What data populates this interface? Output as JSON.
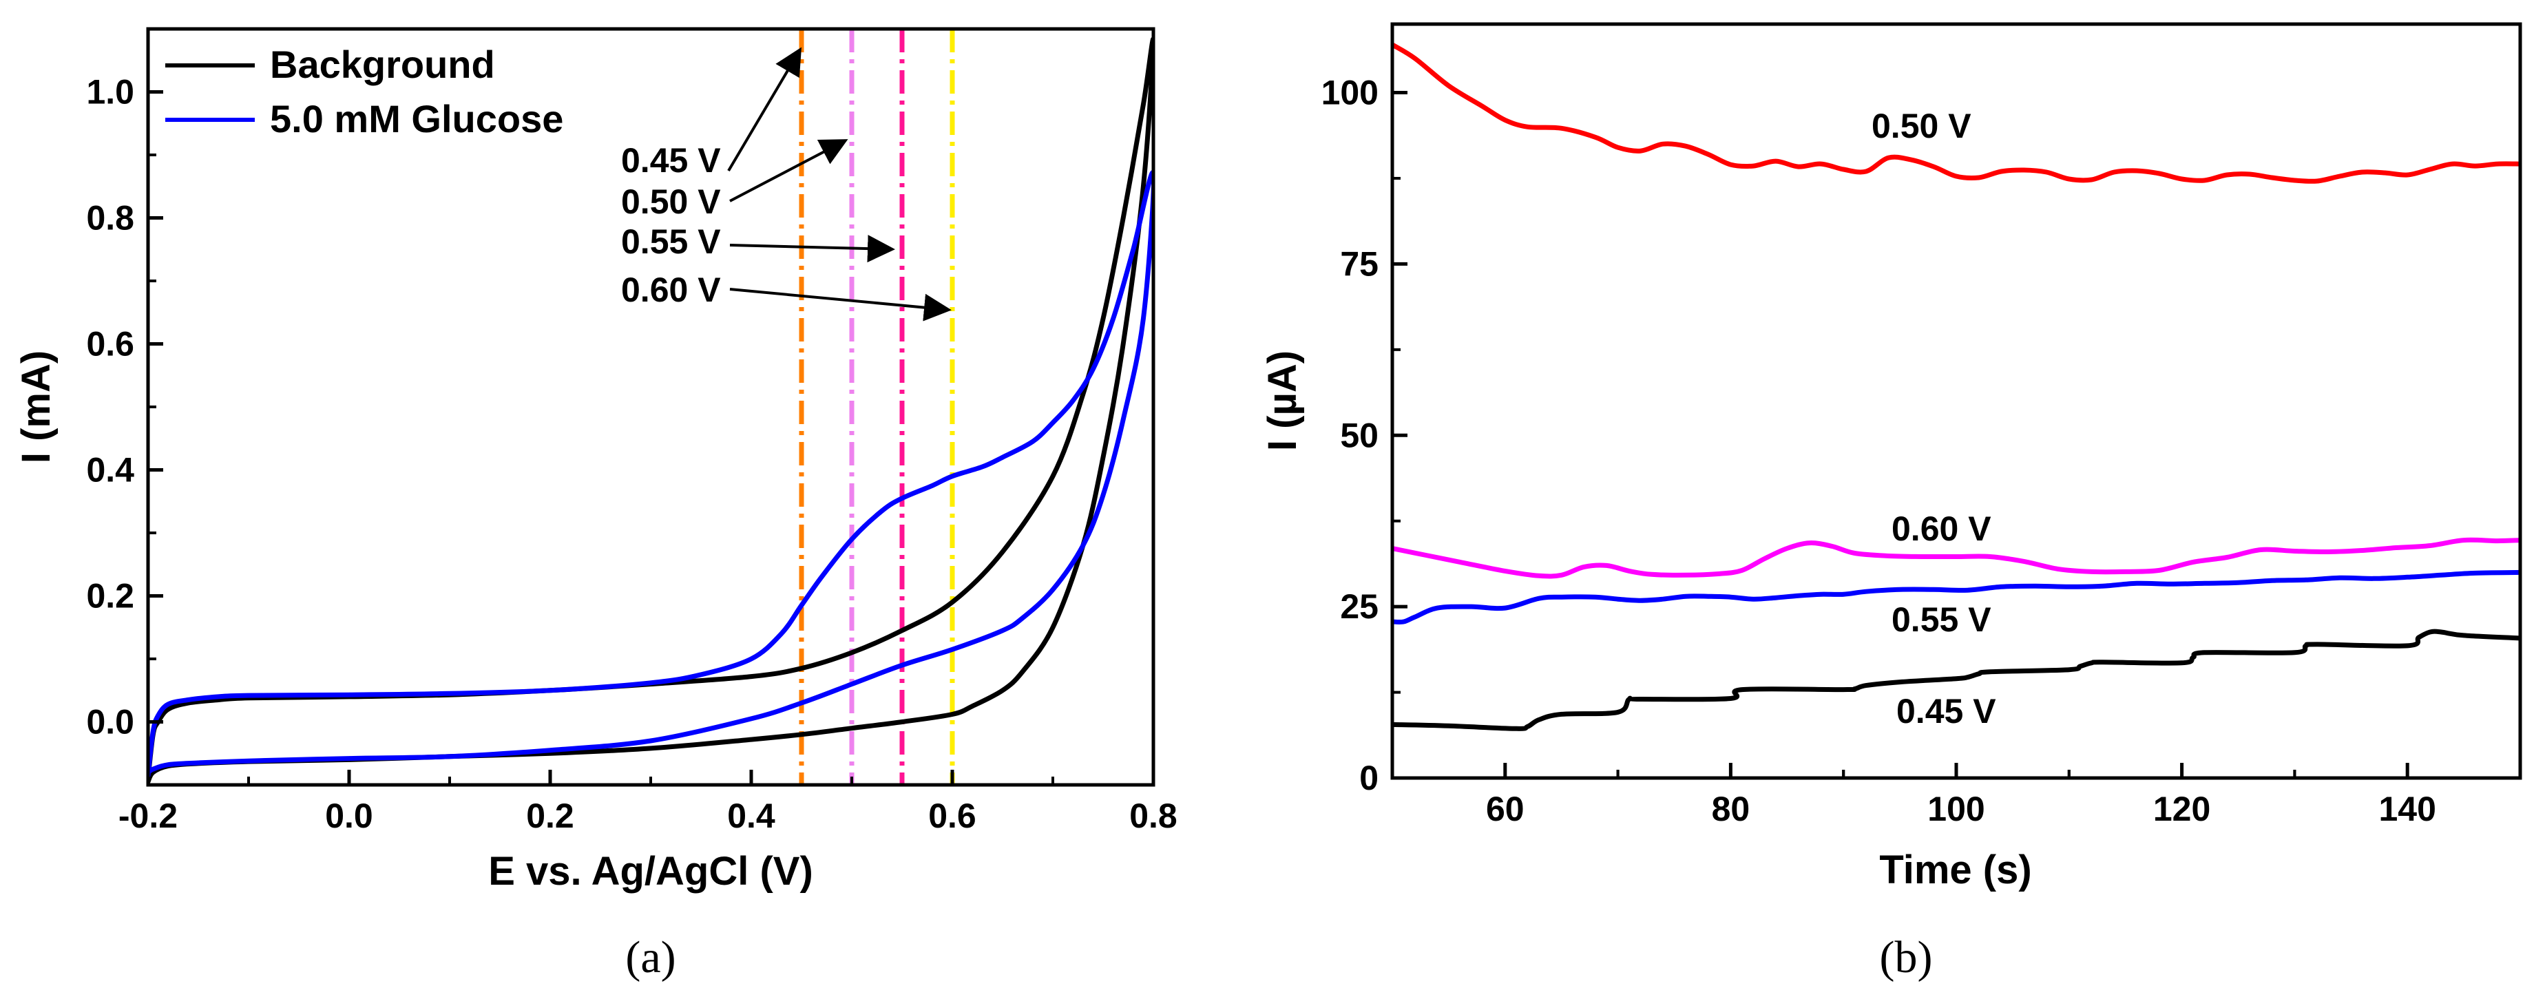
{
  "chart_data": [
    {
      "panel": "(a)",
      "type": "line",
      "title": "",
      "xlabel": "E vs. Ag/AgCl (V)",
      "ylabel": "I (mA)",
      "xlim": [
        -0.2,
        0.8
      ],
      "ylim": [
        -0.1,
        1.1
      ],
      "xticks": [
        -0.2,
        0.0,
        0.2,
        0.4,
        0.6,
        0.8
      ],
      "xtick_labels": [
        "-0.2",
        "0.0",
        "0.2",
        "0.4",
        "0.6",
        "0.8"
      ],
      "yticks": [
        0.0,
        0.2,
        0.4,
        0.6,
        0.8,
        1.0
      ],
      "ytick_labels": [
        "0.0",
        "0.2",
        "0.4",
        "0.6",
        "0.8",
        "1.0"
      ],
      "legend_position": "top-left",
      "series": [
        {
          "name": "Background",
          "color": "#000000",
          "x": [
            -0.2,
            -0.195,
            -0.19,
            -0.18,
            -0.16,
            -0.13,
            -0.1,
            0.0,
            0.1,
            0.2,
            0.3,
            0.4,
            0.45,
            0.5,
            0.55,
            0.6,
            0.65,
            0.7,
            0.73,
            0.75,
            0.77,
            0.79,
            0.8,
            0.79,
            0.77,
            0.75,
            0.73,
            0.7,
            0.67,
            0.65,
            0.62,
            0.6,
            0.55,
            0.5,
            0.45,
            0.4,
            0.3,
            0.2,
            0.1,
            0.0,
            -0.1,
            -0.15,
            -0.18,
            -0.195,
            -0.2
          ],
          "y": [
            -0.09,
            -0.02,
            0.0,
            0.02,
            0.03,
            0.035,
            0.038,
            0.04,
            0.043,
            0.05,
            0.06,
            0.072,
            0.085,
            0.11,
            0.145,
            0.19,
            0.27,
            0.39,
            0.52,
            0.64,
            0.8,
            0.98,
            1.08,
            0.85,
            0.6,
            0.42,
            0.28,
            0.15,
            0.08,
            0.05,
            0.025,
            0.012,
            0.0,
            -0.01,
            -0.02,
            -0.028,
            -0.042,
            -0.05,
            -0.055,
            -0.06,
            -0.063,
            -0.066,
            -0.07,
            -0.08,
            -0.095
          ]
        },
        {
          "name": "5.0 mM Glucose",
          "color": "#0000ff",
          "x": [
            -0.2,
            -0.195,
            -0.19,
            -0.18,
            -0.16,
            -0.13,
            -0.1,
            0.0,
            0.1,
            0.2,
            0.3,
            0.35,
            0.4,
            0.43,
            0.45,
            0.47,
            0.5,
            0.53,
            0.55,
            0.58,
            0.6,
            0.63,
            0.65,
            0.68,
            0.7,
            0.72,
            0.74,
            0.76,
            0.78,
            0.8,
            0.79,
            0.77,
            0.75,
            0.73,
            0.7,
            0.67,
            0.65,
            0.6,
            0.55,
            0.5,
            0.45,
            0.4,
            0.3,
            0.2,
            0.1,
            0.0,
            -0.1,
            -0.15,
            -0.18,
            -0.195,
            -0.2
          ],
          "y": [
            -0.085,
            -0.015,
            0.01,
            0.028,
            0.035,
            0.04,
            0.042,
            0.043,
            0.045,
            0.05,
            0.062,
            0.075,
            0.1,
            0.14,
            0.185,
            0.23,
            0.29,
            0.335,
            0.355,
            0.375,
            0.39,
            0.405,
            0.42,
            0.445,
            0.475,
            0.51,
            0.56,
            0.64,
            0.75,
            0.87,
            0.64,
            0.48,
            0.36,
            0.28,
            0.21,
            0.165,
            0.145,
            0.115,
            0.09,
            0.06,
            0.03,
            0.005,
            -0.03,
            -0.045,
            -0.055,
            -0.058,
            -0.062,
            -0.065,
            -0.068,
            -0.075,
            -0.08
          ]
        }
      ],
      "reference_lines": [
        {
          "x": 0.45,
          "label": "0.45 V",
          "color": "#ff7f00"
        },
        {
          "x": 0.5,
          "label": "0.50 V",
          "color": "#ee82ee"
        },
        {
          "x": 0.55,
          "label": "0.55 V",
          "color": "#ff1493"
        },
        {
          "x": 0.6,
          "label": "0.60 V",
          "color": "#ffee00"
        }
      ],
      "caption": "(a)"
    },
    {
      "panel": "(b)",
      "type": "line",
      "title": "",
      "xlabel": "Time (s)",
      "ylabel": "I (µA)",
      "xlim": [
        50,
        150
      ],
      "ylim": [
        0,
        110
      ],
      "xticks": [
        60,
        80,
        100,
        120,
        140
      ],
      "xtick_labels": [
        "60",
        "80",
        "100",
        "120",
        "140"
      ],
      "yticks": [
        0,
        25,
        50,
        75,
        100
      ],
      "ytick_labels": [
        "0",
        "25",
        "50",
        "75",
        "100"
      ],
      "series": [
        {
          "name": "0.50 V",
          "color": "#ff0000",
          "x": [
            50,
            52,
            55,
            58,
            60,
            62,
            65,
            68,
            70,
            72,
            74,
            76,
            78,
            80,
            82,
            84,
            86,
            88,
            90,
            92,
            94,
            96,
            98,
            100,
            102,
            104,
            106,
            108,
            110,
            112,
            114,
            116,
            118,
            120,
            122,
            124,
            126,
            128,
            130,
            132,
            134,
            136,
            138,
            140,
            142,
            144,
            146,
            148,
            150
          ],
          "y": [
            107,
            105,
            101,
            98,
            96,
            95,
            94.8,
            93.5,
            92,
            91.5,
            92.5,
            92.2,
            91,
            89.5,
            89.3,
            90,
            89.2,
            89.6,
            88.8,
            88.5,
            90.5,
            90.2,
            89.2,
            87.8,
            87.6,
            88.5,
            88.7,
            88.4,
            87.4,
            87.3,
            88.4,
            88.6,
            88.2,
            87.4,
            87.2,
            88,
            88.1,
            87.6,
            87.2,
            87.1,
            87.8,
            88.4,
            88.3,
            88,
            88.8,
            89.6,
            89.3,
            89.6,
            89.6
          ]
        },
        {
          "name": "0.60 V",
          "color": "#ff00ff",
          "x": [
            50,
            53,
            56,
            60,
            63,
            65,
            67,
            69,
            71,
            73,
            76,
            79,
            81,
            83,
            85,
            87,
            89,
            91,
            94,
            97,
            100,
            103,
            106,
            109,
            112,
            115,
            118,
            121,
            124,
            127,
            130,
            133,
            136,
            139,
            142,
            145,
            148,
            150
          ],
          "y": [
            33.5,
            32.5,
            31.5,
            30.2,
            29.5,
            29.6,
            30.8,
            31,
            30.2,
            29.7,
            29.6,
            29.8,
            30.3,
            32,
            33.5,
            34.3,
            33.8,
            32.8,
            32.4,
            32.3,
            32.3,
            32.3,
            31.6,
            30.5,
            30.1,
            30.1,
            30.3,
            31.5,
            32.2,
            33.3,
            33.1,
            33,
            33.2,
            33.6,
            33.9,
            34.7,
            34.6,
            34.7
          ]
        },
        {
          "name": "0.55 V",
          "color": "#0000ff",
          "x": [
            50,
            51,
            52,
            54,
            57,
            60,
            63,
            65,
            68,
            70,
            72,
            74,
            76,
            78,
            80,
            82,
            84,
            86,
            88,
            90,
            92,
            95,
            98,
            101,
            104,
            107,
            110,
            113,
            116,
            119,
            122,
            125,
            128,
            131,
            134,
            137,
            140,
            143,
            146,
            150
          ],
          "y": [
            22.8,
            22.8,
            23.5,
            24.8,
            25,
            24.8,
            26.2,
            26.4,
            26.4,
            26.1,
            25.9,
            26.1,
            26.5,
            26.5,
            26.4,
            26.1,
            26.3,
            26.6,
            26.8,
            26.8,
            27.2,
            27.5,
            27.5,
            27.4,
            27.9,
            28,
            27.9,
            28,
            28.4,
            28.3,
            28.4,
            28.5,
            28.8,
            28.9,
            29.2,
            29.1,
            29.3,
            29.6,
            29.9,
            30
          ]
        },
        {
          "name": "0.45 V",
          "color": "#000000",
          "x": [
            50,
            55,
            61,
            62,
            63,
            65,
            70,
            71,
            72,
            80,
            81,
            90,
            91,
            92,
            95,
            100,
            101,
            102,
            103,
            110,
            111,
            112,
            113,
            120,
            121,
            122,
            130,
            131,
            132,
            140,
            141,
            142,
            143,
            145,
            150
          ],
          "y": [
            7.8,
            7.6,
            7.2,
            7.5,
            8.5,
            9.3,
            9.6,
            11.5,
            11.5,
            11.6,
            12.9,
            12.9,
            13,
            13.5,
            14,
            14.5,
            14.7,
            15.2,
            15.5,
            15.8,
            16.3,
            16.8,
            16.9,
            16.8,
            17.6,
            18.3,
            18.3,
            19.3,
            19.5,
            19.3,
            20.5,
            21.3,
            21.3,
            20.8,
            20.4
          ]
        }
      ],
      "caption": "(b)"
    }
  ]
}
